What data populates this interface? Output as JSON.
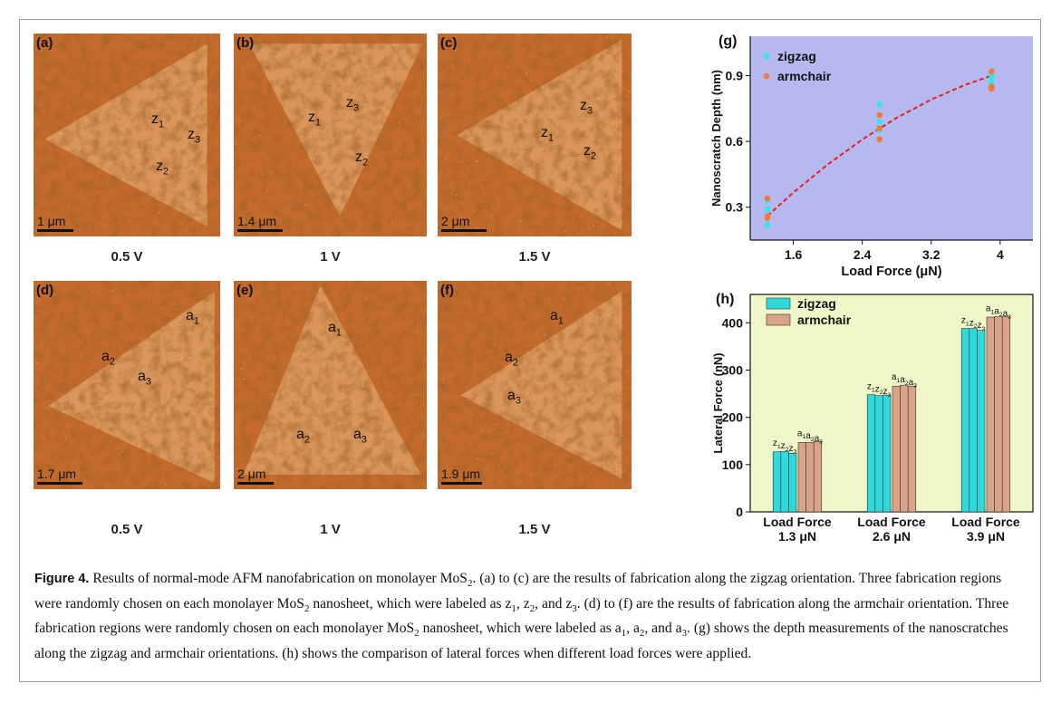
{
  "panels": [
    {
      "label": "(a)",
      "scale_bar": "1 μm",
      "voltage": "0.5 V",
      "marks": [
        {
          "base": "z",
          "sub": "1"
        },
        {
          "base": "z",
          "sub": "3"
        },
        {
          "base": "z",
          "sub": "2"
        }
      ]
    },
    {
      "label": "(b)",
      "scale_bar": "1.4 μm",
      "voltage": "1 V",
      "marks": [
        {
          "base": "z",
          "sub": "1"
        },
        {
          "base": "z",
          "sub": "3"
        },
        {
          "base": "z",
          "sub": "2"
        }
      ]
    },
    {
      "label": "(c)",
      "scale_bar": "2 μm",
      "voltage": "1.5 V",
      "marks": [
        {
          "base": "z",
          "sub": "1"
        },
        {
          "base": "z",
          "sub": "3"
        },
        {
          "base": "z",
          "sub": "2"
        }
      ]
    },
    {
      "label": "(d)",
      "scale_bar": "1.7 μm",
      "voltage": "0.5 V",
      "marks": [
        {
          "base": "a",
          "sub": "1"
        },
        {
          "base": "a",
          "sub": "2"
        },
        {
          "base": "a",
          "sub": "3"
        }
      ]
    },
    {
      "label": "(e)",
      "scale_bar": "2 μm",
      "voltage": "1 V",
      "marks": [
        {
          "base": "a",
          "sub": "1"
        },
        {
          "base": "a",
          "sub": "2"
        },
        {
          "base": "a",
          "sub": "3"
        }
      ]
    },
    {
      "label": "(f)",
      "scale_bar": "1.9 μm",
      "voltage": "1.5 V",
      "marks": [
        {
          "base": "a",
          "sub": "1"
        },
        {
          "base": "a",
          "sub": "2"
        },
        {
          "base": "a",
          "sub": "3"
        }
      ]
    }
  ],
  "chart_data": [
    {
      "type": "scatter",
      "panel_label": "(g)",
      "x_label": "Load Force  (μN)",
      "y_label": "Nanoscratch Depth (nm)",
      "background": "#b5b9ef",
      "xlim": [
        1.1,
        4.38
      ],
      "ylim": [
        0.15,
        1.08
      ],
      "xticks": [
        1.6,
        2.4,
        3.2,
        4
      ],
      "yticks": [
        0.3,
        0.6,
        0.9
      ],
      "legend": "upper-left",
      "series": [
        {
          "name": "zigzag",
          "color": "#33e6ec",
          "x": [
            1.3,
            1.3,
            1.3,
            2.6,
            2.6,
            2.6,
            3.9,
            3.9,
            3.9
          ],
          "values": [
            0.22,
            0.29,
            0.33,
            0.65,
            0.69,
            0.77,
            0.87,
            0.89,
            0.91
          ]
        },
        {
          "name": "armchair",
          "color": "#f07a3a",
          "x": [
            1.3,
            1.3,
            1.3,
            2.6,
            2.6,
            2.6,
            3.9,
            3.9,
            3.9
          ],
          "values": [
            0.25,
            0.26,
            0.34,
            0.61,
            0.66,
            0.72,
            0.84,
            0.85,
            0.92
          ]
        }
      ],
      "fit": {
        "color": "#e8201c",
        "x": [
          1.3,
          1.6,
          2.0,
          2.4,
          2.8,
          3.2,
          3.6,
          3.9
        ],
        "values": [
          0.26,
          0.367,
          0.495,
          0.609,
          0.708,
          0.791,
          0.859,
          0.9
        ]
      }
    },
    {
      "type": "grouped_bar",
      "panel_label": "(h)",
      "y_label": "Lateral Force (nN)",
      "background": "#eff7c9",
      "ylim": [
        0,
        460
      ],
      "yticks": [
        0,
        100,
        200,
        300,
        400
      ],
      "legend": "upper-left",
      "categories": [
        [
          "Load Force",
          "1.3 μN"
        ],
        [
          "Load Force",
          "2.6 μN"
        ],
        [
          "Load Force",
          "3.9 μN"
        ]
      ],
      "series": [
        {
          "name": "zigzag",
          "color": "#2fd9d9",
          "bar_labels": [
            {
              "base": "z",
              "sub": "1"
            },
            {
              "base": "z",
              "sub": "2"
            },
            {
              "base": "z",
              "sub": "3"
            }
          ],
          "values": [
            [
              127,
              128,
              124
            ],
            [
              248,
              246,
              247
            ],
            [
              388,
              388,
              384
            ]
          ]
        },
        {
          "name": "armchair",
          "color": "#d8a386",
          "bar_labels": [
            {
              "base": "a",
              "sub": "1"
            },
            {
              "base": "a",
              "sub": "2"
            },
            {
              "base": "a",
              "sub": "3"
            }
          ],
          "values": [
            [
              147,
              147,
              149
            ],
            [
              266,
              268,
              266
            ],
            [
              412,
              413,
              413
            ]
          ]
        }
      ]
    }
  ],
  "caption": {
    "heading": "Figure 4.",
    "runs": [
      {
        "t": " Results of normal-mode AFM nanofabrication on monolayer MoS"
      },
      {
        "sub": "2"
      },
      {
        "t": ". (a) to (c) are the results of fabrication along the zigzag orientation. Three fabrication regions were randomly chosen on each monolayer MoS"
      },
      {
        "sub": "2"
      },
      {
        "t": " nanosheet, which were labeled as z"
      },
      {
        "sub": "1"
      },
      {
        "t": ", z"
      },
      {
        "sub": "2"
      },
      {
        "t": ", and z"
      },
      {
        "sub": "3"
      },
      {
        "t": ". (d) to (f) are the results of fabrication along the armchair orientation. Three fabrication regions were randomly chosen on each monolayer MoS"
      },
      {
        "sub": "2"
      },
      {
        "t": " nanosheet, which were labeled as a"
      },
      {
        "sub": "1"
      },
      {
        "t": ", a"
      },
      {
        "sub": "2"
      },
      {
        "t": ", and a"
      },
      {
        "sub": "3"
      },
      {
        "t": ". (g) shows the depth measurements of the nanoscratches along the zigzag and armchair orientations. (h) shows the comparison of lateral forces when different load forces were applied."
      }
    ]
  }
}
